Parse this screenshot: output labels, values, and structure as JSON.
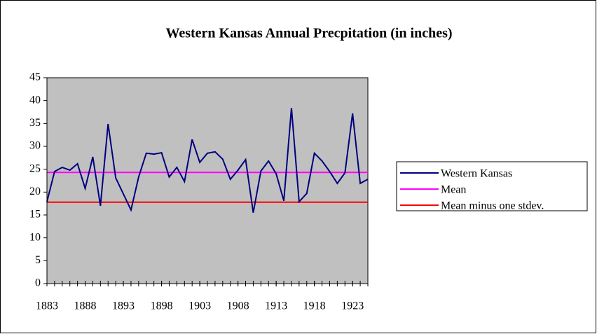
{
  "chart_data": {
    "type": "line",
    "title": "Western Kansas Annual Precpitation (in inches)",
    "x": [
      1883,
      1884,
      1885,
      1886,
      1887,
      1888,
      1889,
      1890,
      1891,
      1892,
      1893,
      1894,
      1895,
      1896,
      1897,
      1898,
      1899,
      1900,
      1901,
      1902,
      1903,
      1904,
      1905,
      1906,
      1907,
      1908,
      1909,
      1910,
      1911,
      1912,
      1913,
      1914,
      1915,
      1916,
      1917,
      1918,
      1919,
      1920,
      1921,
      1922,
      1923,
      1924,
      1925
    ],
    "series": [
      {
        "name": "Western Kansas",
        "color": "#000080",
        "values": [
          17.9,
          24.5,
          25.4,
          24.8,
          26.2,
          20.8,
          27.7,
          17.0,
          34.9,
          23.1,
          19.6,
          16.1,
          23.3,
          28.5,
          28.3,
          28.6,
          23.3,
          25.4,
          22.3,
          31.5,
          26.5,
          28.5,
          28.8,
          27.2,
          22.8,
          24.8,
          27.1,
          15.5,
          24.6,
          26.8,
          24.0,
          18.1,
          38.4,
          17.9,
          19.7,
          28.5,
          26.8,
          24.5,
          21.9,
          24.2,
          37.2,
          21.9,
          22.8
        ]
      },
      {
        "name": "Mean",
        "color": "#ff00ff",
        "values": [
          24.3,
          24.3,
          24.3,
          24.3,
          24.3,
          24.3,
          24.3,
          24.3,
          24.3,
          24.3,
          24.3,
          24.3,
          24.3,
          24.3,
          24.3,
          24.3,
          24.3,
          24.3,
          24.3,
          24.3,
          24.3,
          24.3,
          24.3,
          24.3,
          24.3,
          24.3,
          24.3,
          24.3,
          24.3,
          24.3,
          24.3,
          24.3,
          24.3,
          24.3,
          24.3,
          24.3,
          24.3,
          24.3,
          24.3,
          24.3,
          24.3,
          24.3,
          24.3
        ]
      },
      {
        "name": "Mean minus one stdev.",
        "color": "#ff0000",
        "values": [
          17.8,
          17.8,
          17.8,
          17.8,
          17.8,
          17.8,
          17.8,
          17.8,
          17.8,
          17.8,
          17.8,
          17.8,
          17.8,
          17.8,
          17.8,
          17.8,
          17.8,
          17.8,
          17.8,
          17.8,
          17.8,
          17.8,
          17.8,
          17.8,
          17.8,
          17.8,
          17.8,
          17.8,
          17.8,
          17.8,
          17.8,
          17.8,
          17.8,
          17.8,
          17.8,
          17.8,
          17.8,
          17.8,
          17.8,
          17.8,
          17.8,
          17.8,
          17.8
        ]
      }
    ],
    "xlim": [
      1883,
      1925
    ],
    "xticks": [
      1883,
      1888,
      1893,
      1898,
      1903,
      1908,
      1913,
      1918,
      1923
    ],
    "ylim": [
      0,
      45
    ],
    "yticks": [
      0,
      5,
      10,
      15,
      20,
      25,
      30,
      35,
      40,
      45
    ],
    "grid": false,
    "plot_background": "#c0c0c0",
    "legend": "right"
  }
}
